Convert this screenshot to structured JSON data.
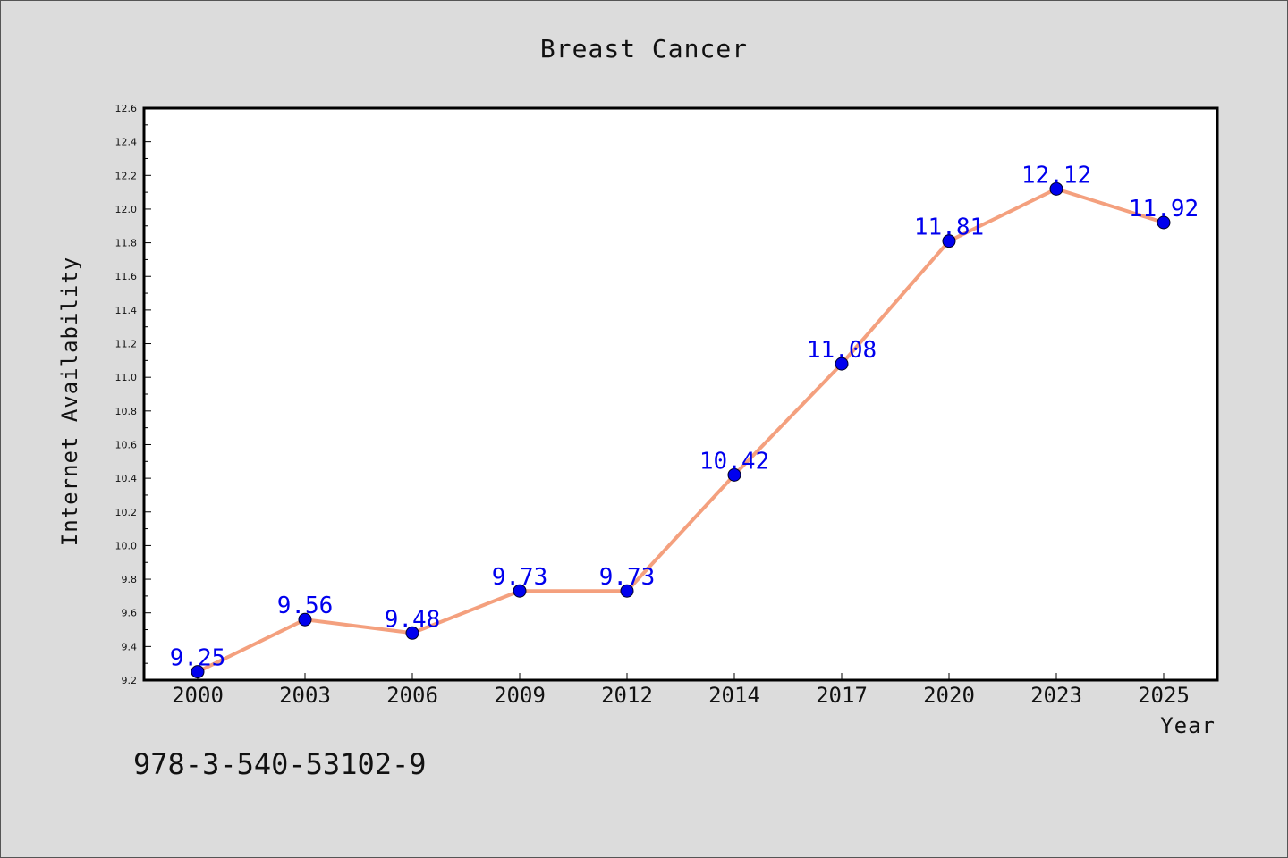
{
  "chart_data": {
    "type": "line",
    "title": "Breast Cancer",
    "xlabel": "Year",
    "ylabel": "Internet Availability",
    "categories": [
      "2000",
      "2003",
      "2006",
      "2009",
      "2012",
      "2014",
      "2017",
      "2020",
      "2023",
      "2025"
    ],
    "values": [
      9.25,
      9.56,
      9.48,
      9.73,
      9.73,
      10.42,
      11.08,
      11.81,
      12.12,
      11.92
    ],
    "data_labels": [
      "9.25",
      "9.56",
      "9.48",
      "9.73",
      "9.73",
      "10.42",
      "11.08",
      "11.81",
      "12.12",
      "11.92"
    ],
    "ylim": [
      9.2,
      12.6
    ],
    "yticks": [
      "9.2",
      "9.4",
      "9.6",
      "9.8",
      "10.0",
      "10.2",
      "10.4",
      "10.6",
      "10.8",
      "11.0",
      "11.2",
      "11.4",
      "11.6",
      "11.8",
      "12.0",
      "12.2",
      "12.4",
      "12.6"
    ],
    "grid": false,
    "line_color": "#f4a07e",
    "marker_color": "#0000ee",
    "label_color": "#0000ee"
  },
  "footer": {
    "isbn": "978-3-540-53102-9"
  }
}
